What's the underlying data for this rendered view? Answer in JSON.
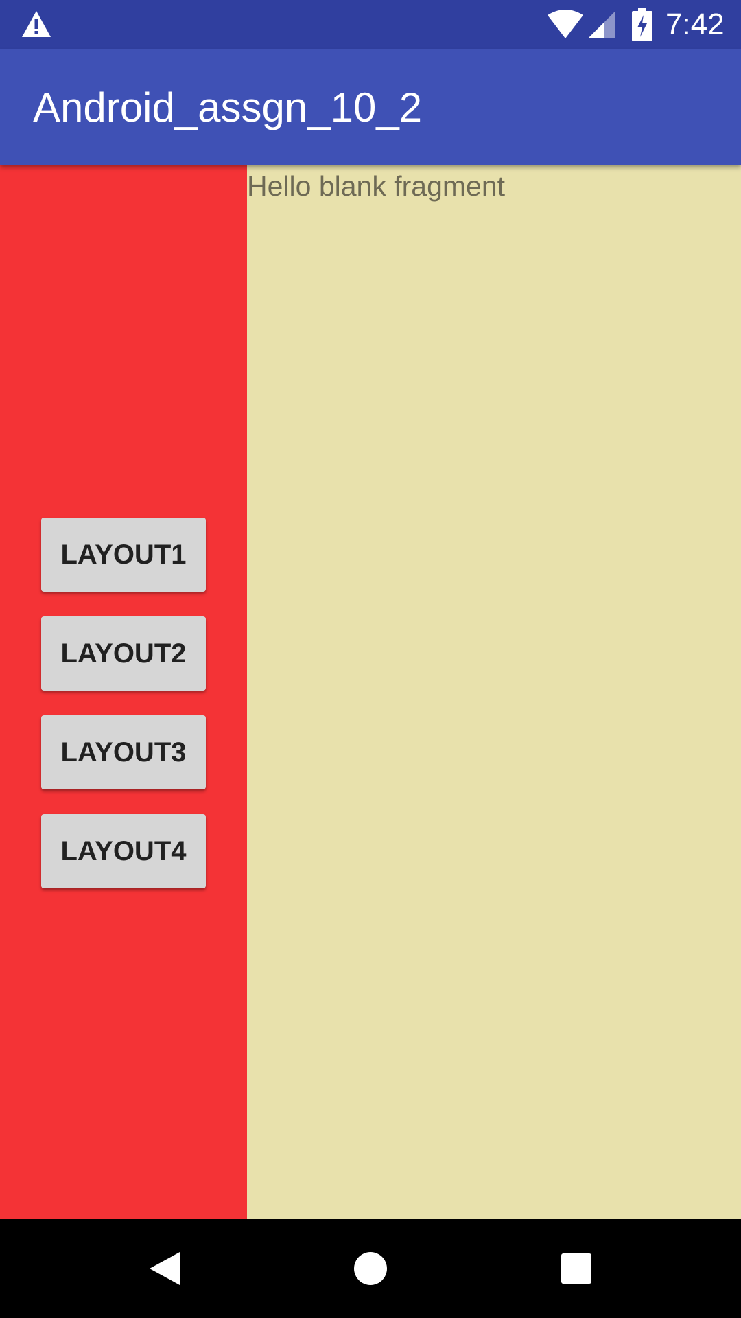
{
  "status_bar": {
    "time": "7:42",
    "icons": [
      "warning-icon",
      "wifi-icon",
      "signal-icon",
      "battery-charging-icon"
    ]
  },
  "app_bar": {
    "title": "Android_assgn_10_2"
  },
  "fragment": {
    "text": "Hello blank fragment"
  },
  "buttons": [
    {
      "label": "LAYOUT1"
    },
    {
      "label": "LAYOUT2"
    },
    {
      "label": "LAYOUT3"
    },
    {
      "label": "LAYOUT4"
    }
  ],
  "nav_bar": {
    "icons": [
      "back-icon",
      "home-icon",
      "recents-icon"
    ]
  },
  "colors": {
    "status_bar": "#303F9F",
    "app_bar": "#3F51B5",
    "left_pane": "#F43336",
    "right_pane": "#E8E1AC",
    "button": "#D6D6D6"
  }
}
